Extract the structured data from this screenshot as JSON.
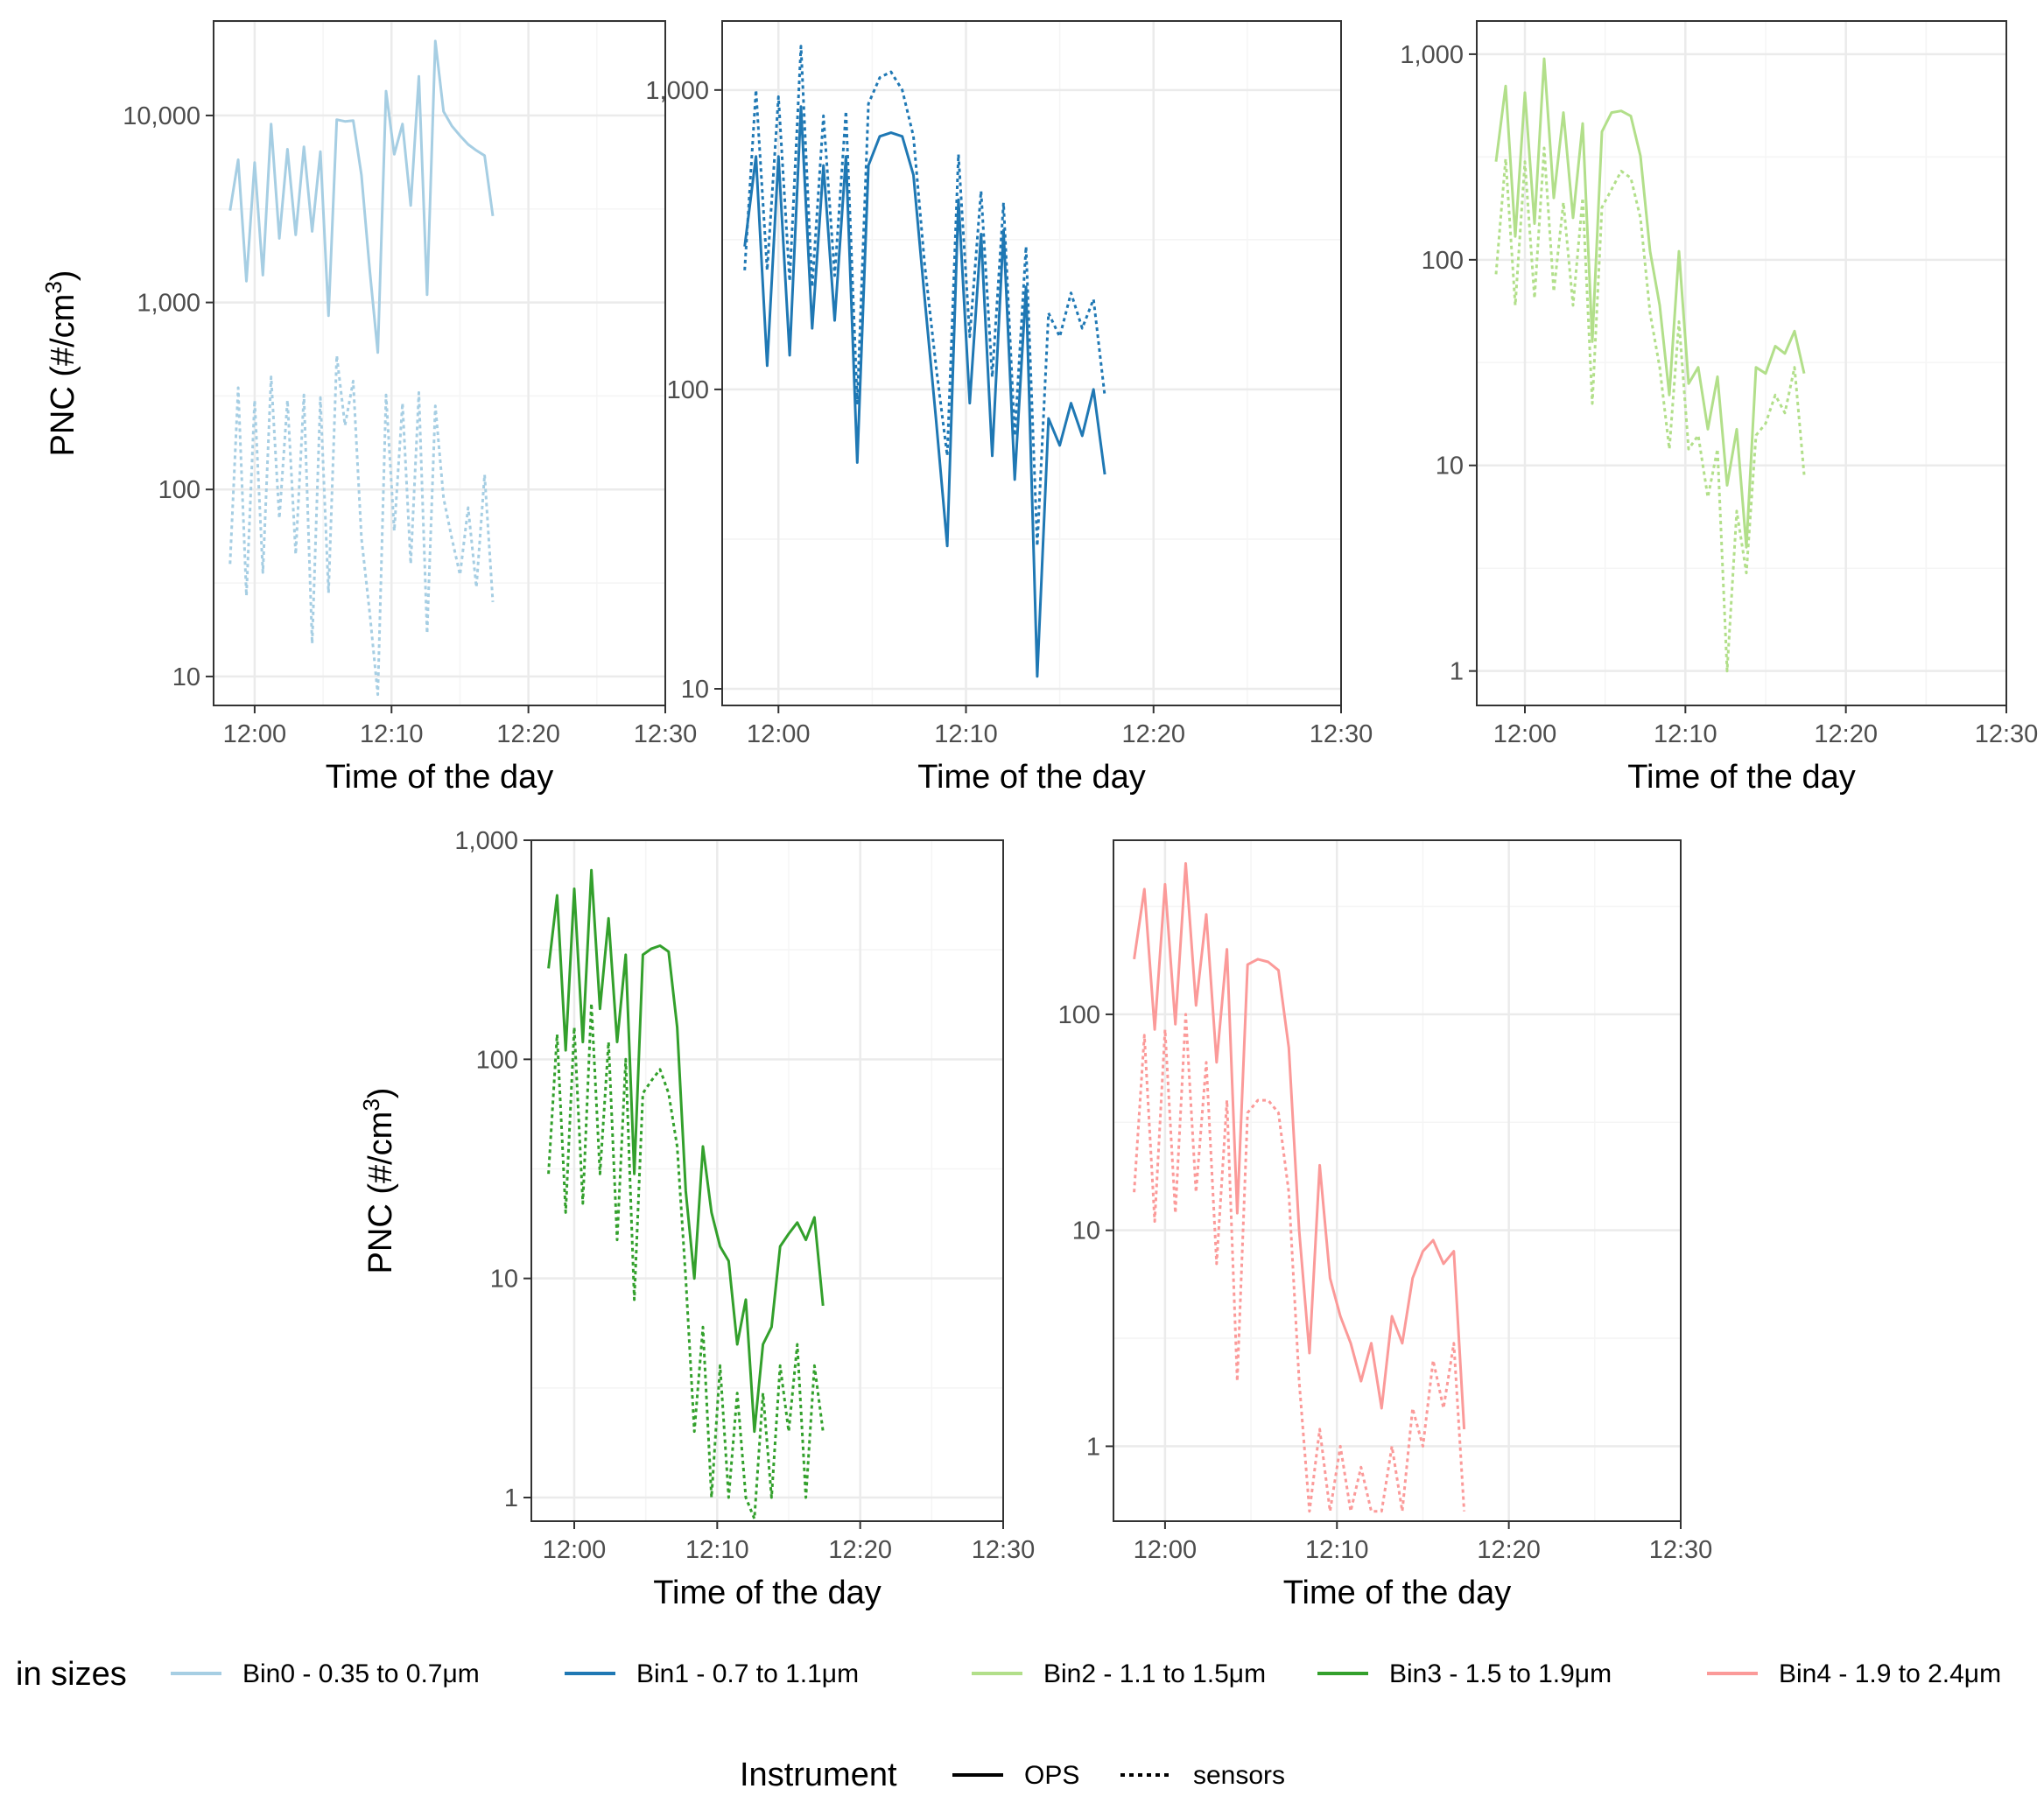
{
  "chart_data": [
    {
      "type": "line",
      "panel": "Bin0",
      "xlabel": "Time of the day",
      "ylabel": "PNC (#/cm3)",
      "yscale": "log",
      "xlim": [
        11.95,
        12.5
      ],
      "ylim": [
        7,
        32000
      ],
      "x_ticks": [
        "12:00",
        "12:10",
        "12:20",
        "12:30"
      ],
      "y_ticks": [
        "10",
        "100",
        "1,000",
        "10,000"
      ],
      "series": [
        {
          "name": "OPS",
          "bin": "Bin0 - 0.35 to 0.7μm",
          "x": [
            11.97,
            11.98,
            11.99,
            12.0,
            12.01,
            12.02,
            12.03,
            12.04,
            12.05,
            12.06,
            12.07,
            12.08,
            12.09,
            12.1,
            12.11,
            12.12,
            12.13,
            12.14,
            12.15,
            12.16,
            12.17,
            12.18,
            12.19,
            12.2,
            12.21,
            12.22,
            12.23,
            12.24,
            12.25,
            12.26,
            12.27,
            12.28,
            12.29
          ],
          "values": [
            3100,
            5800,
            1300,
            5600,
            1400,
            9000,
            2200,
            6600,
            2300,
            6800,
            2400,
            6400,
            850,
            9500,
            9300,
            9400,
            4800,
            1500,
            540,
            13500,
            6200,
            9000,
            3300,
            16200,
            1100,
            25000,
            10500,
            8800,
            7800,
            7000,
            6500,
            6100,
            2900
          ]
        },
        {
          "name": "sensors",
          "bin": "Bin0 - 0.35 to 0.7μm",
          "x": [
            11.97,
            11.98,
            11.99,
            12.0,
            12.01,
            12.02,
            12.03,
            12.04,
            12.05,
            12.06,
            12.07,
            12.08,
            12.09,
            12.1,
            12.11,
            12.12,
            12.13,
            12.14,
            12.15,
            12.16,
            12.17,
            12.18,
            12.19,
            12.2,
            12.21,
            12.22,
            12.23,
            12.24,
            12.25,
            12.26,
            12.27,
            12.28,
            12.29
          ],
          "values": [
            40,
            350,
            27,
            300,
            36,
            400,
            70,
            300,
            45,
            320,
            15,
            310,
            28,
            520,
            220,
            380,
            55,
            22,
            8,
            320,
            60,
            290,
            40,
            330,
            17,
            280,
            90,
            55,
            35,
            80,
            30,
            120,
            25
          ]
        }
      ]
    },
    {
      "type": "line",
      "panel": "Bin1",
      "xlabel": "Time of the day",
      "ylabel": "",
      "yscale": "log",
      "xlim": [
        11.95,
        12.5
      ],
      "ylim": [
        8.8,
        1700
      ],
      "x_ticks": [
        "12:00",
        "12:10",
        "12:20",
        "12:30"
      ],
      "y_ticks": [
        "10",
        "100",
        "1,000"
      ],
      "series": [
        {
          "name": "OPS",
          "bin": "Bin1 - 0.7 to 1.1μm",
          "x": [
            11.97,
            11.98,
            11.99,
            12.0,
            12.01,
            12.02,
            12.03,
            12.04,
            12.05,
            12.06,
            12.07,
            12.08,
            12.09,
            12.1,
            12.11,
            12.12,
            12.13,
            12.14,
            12.15,
            12.16,
            12.17,
            12.18,
            12.19,
            12.2,
            12.21,
            12.22,
            12.23,
            12.24,
            12.25,
            12.26,
            12.27,
            12.28,
            12.29
          ],
          "values": [
            300,
            600,
            120,
            600,
            130,
            880,
            160,
            560,
            170,
            600,
            57,
            560,
            700,
            720,
            700,
            520,
            200,
            80,
            30,
            430,
            90,
            330,
            60,
            340,
            50,
            220,
            11,
            80,
            65,
            90,
            70,
            100,
            52
          ]
        },
        {
          "name": "sensors",
          "bin": "Bin1 - 0.7 to 1.1μm",
          "x": [
            11.97,
            11.98,
            11.99,
            12.0,
            12.01,
            12.02,
            12.03,
            12.04,
            12.05,
            12.06,
            12.07,
            12.08,
            12.09,
            12.1,
            12.11,
            12.12,
            12.13,
            12.14,
            12.15,
            12.16,
            12.17,
            12.18,
            12.19,
            12.2,
            12.21,
            12.22,
            12.23,
            12.24,
            12.25,
            12.26,
            12.27,
            12.28,
            12.29
          ],
          "values": [
            250,
            1000,
            250,
            950,
            230,
            1400,
            220,
            820,
            240,
            850,
            90,
            900,
            1100,
            1150,
            1000,
            700,
            260,
            120,
            60,
            610,
            150,
            460,
            110,
            420,
            70,
            300,
            30,
            180,
            150,
            210,
            160,
            200,
            95
          ]
        }
      ]
    },
    {
      "type": "line",
      "panel": "Bin2",
      "xlabel": "Time of the day",
      "ylabel": "",
      "yscale": "log",
      "xlim": [
        11.95,
        12.5
      ],
      "ylim": [
        0.68,
        1450
      ],
      "x_ticks": [
        "12:00",
        "12:10",
        "12:20",
        "12:30"
      ],
      "y_ticks": [
        "1",
        "10",
        "100",
        "1,000"
      ],
      "series": [
        {
          "name": "OPS",
          "bin": "Bin2 - 1.1 to 1.5μm",
          "x": [
            11.97,
            11.98,
            11.99,
            12.0,
            12.01,
            12.02,
            12.03,
            12.04,
            12.05,
            12.06,
            12.07,
            12.08,
            12.09,
            12.1,
            12.11,
            12.12,
            12.13,
            12.14,
            12.15,
            12.16,
            12.17,
            12.18,
            12.19,
            12.2,
            12.21,
            12.22,
            12.23,
            12.24,
            12.25,
            12.26,
            12.27,
            12.28,
            12.29
          ],
          "values": [
            300,
            700,
            130,
            650,
            150,
            950,
            200,
            520,
            160,
            460,
            40,
            420,
            520,
            530,
            500,
            320,
            110,
            60,
            22,
            110,
            25,
            30,
            15,
            27,
            8,
            15,
            4,
            30,
            28,
            38,
            35,
            45,
            28
          ]
        },
        {
          "name": "sensors",
          "bin": "Bin2 - 1.1 to 1.5μm",
          "x": [
            11.97,
            11.98,
            11.99,
            12.0,
            12.01,
            12.02,
            12.03,
            12.04,
            12.05,
            12.06,
            12.07,
            12.08,
            12.09,
            12.1,
            12.11,
            12.12,
            12.13,
            12.14,
            12.15,
            12.16,
            12.17,
            12.18,
            12.19,
            12.2,
            12.21,
            12.22,
            12.23,
            12.24,
            12.25,
            12.26,
            12.27,
            12.28,
            12.29
          ],
          "values": [
            85,
            310,
            60,
            300,
            65,
            350,
            70,
            190,
            60,
            200,
            20,
            180,
            220,
            270,
            250,
            160,
            55,
            30,
            12,
            50,
            12,
            14,
            7,
            12,
            1,
            6,
            3,
            14,
            16,
            22,
            18,
            30,
            9
          ]
        }
      ]
    },
    {
      "type": "line",
      "panel": "Bin3",
      "xlabel": "Time of the day",
      "ylabel": "PNC (#/cm3)",
      "yscale": "log",
      "xlim": [
        11.95,
        12.5
      ],
      "ylim": [
        0.78,
        1000
      ],
      "x_ticks": [
        "12:00",
        "12:10",
        "12:20",
        "12:30"
      ],
      "y_ticks": [
        "1",
        "10",
        "100",
        "1,000"
      ],
      "series": [
        {
          "name": "OPS",
          "bin": "Bin3 - 1.5 to 1.9μm",
          "x": [
            11.97,
            11.98,
            11.99,
            12.0,
            12.01,
            12.02,
            12.03,
            12.04,
            12.05,
            12.06,
            12.07,
            12.08,
            12.09,
            12.1,
            12.11,
            12.12,
            12.13,
            12.14,
            12.15,
            12.16,
            12.17,
            12.18,
            12.19,
            12.2,
            12.21,
            12.22,
            12.23,
            12.24,
            12.25,
            12.26,
            12.27,
            12.28,
            12.29
          ],
          "values": [
            260,
            560,
            110,
            600,
            120,
            730,
            170,
            440,
            120,
            300,
            30,
            300,
            320,
            330,
            310,
            140,
            25,
            10,
            40,
            20,
            14,
            12,
            5,
            8,
            2,
            5,
            6,
            14,
            16,
            18,
            15,
            19,
            7.5
          ]
        },
        {
          "name": "sensors",
          "bin": "Bin3 - 1.5 to 1.9μm",
          "x": [
            11.97,
            11.98,
            11.99,
            12.0,
            12.01,
            12.02,
            12.03,
            12.04,
            12.05,
            12.06,
            12.07,
            12.08,
            12.09,
            12.1,
            12.11,
            12.12,
            12.13,
            12.14,
            12.15,
            12.16,
            12.17,
            12.18,
            12.19,
            12.2,
            12.21,
            12.22,
            12.23,
            12.24,
            12.25,
            12.26,
            12.27,
            12.28,
            12.29
          ],
          "values": [
            30,
            130,
            20,
            140,
            22,
            180,
            30,
            120,
            15,
            100,
            8,
            70,
            80,
            90,
            70,
            40,
            10,
            2,
            6,
            1,
            4,
            1,
            3,
            1,
            0.8,
            3,
            1,
            4,
            2,
            5,
            1,
            4,
            2
          ]
        }
      ]
    },
    {
      "type": "line",
      "panel": "Bin4",
      "xlabel": "Time of the day",
      "ylabel": "",
      "yscale": "log",
      "xlim": [
        11.95,
        12.5
      ],
      "ylim": [
        0.45,
        640
      ],
      "x_ticks": [
        "12:00",
        "12:10",
        "12:20",
        "12:30"
      ],
      "y_ticks": [
        "1",
        "10",
        "100"
      ],
      "series": [
        {
          "name": "OPS",
          "bin": "Bin4 - 1.9 to 2.4μm",
          "x": [
            11.97,
            11.98,
            11.99,
            12.0,
            12.01,
            12.02,
            12.03,
            12.04,
            12.05,
            12.06,
            12.07,
            12.08,
            12.09,
            12.1,
            12.11,
            12.12,
            12.13,
            12.14,
            12.15,
            12.16,
            12.17,
            12.18,
            12.19,
            12.2,
            12.21,
            12.22,
            12.23,
            12.24,
            12.25,
            12.26,
            12.27,
            12.28,
            12.29
          ],
          "values": [
            180,
            380,
            85,
            400,
            90,
            500,
            110,
            290,
            60,
            200,
            12,
            170,
            180,
            175,
            160,
            70,
            10,
            2.7,
            20,
            6,
            4,
            3,
            2,
            3,
            1.5,
            4,
            3,
            6,
            8,
            9,
            7,
            8,
            1.2
          ]
        },
        {
          "name": "sensors",
          "bin": "Bin4 - 1.9 to 2.4μm",
          "x": [
            11.97,
            11.98,
            11.99,
            12.0,
            12.01,
            12.02,
            12.03,
            12.04,
            12.05,
            12.06,
            12.07,
            12.08,
            12.09,
            12.1,
            12.11,
            12.12,
            12.13,
            12.14,
            12.15,
            12.16,
            12.17,
            12.18,
            12.19,
            12.2,
            12.21,
            12.22,
            12.23,
            12.24,
            12.25,
            12.26,
            12.27,
            12.28,
            12.29
          ],
          "values": [
            15,
            80,
            11,
            85,
            12,
            100,
            15,
            60,
            7,
            40,
            2,
            35,
            40,
            40,
            35,
            15,
            2,
            0.5,
            1.2,
            0.5,
            1,
            0.5,
            0.8,
            0.5,
            0.5,
            1,
            0.5,
            1.5,
            1,
            2.5,
            1.5,
            3,
            0.5
          ]
        }
      ]
    }
  ],
  "legend_bins": {
    "title": "in sizes",
    "items": [
      {
        "label": "Bin0 - 0.35 to 0.7μm",
        "color": "#a6cee3"
      },
      {
        "label": "Bin1 - 0.7 to 1.1μm",
        "color": "#1f78b4"
      },
      {
        "label": "Bin2 - 1.1 to 1.5μm",
        "color": "#b2df8a"
      },
      {
        "label": "Bin3 - 1.5 to 1.9μm",
        "color": "#33a02c"
      },
      {
        "label": "Bin4 - 1.9 to 2.4μm",
        "color": "#fb9a99"
      }
    ]
  },
  "legend_instrument": {
    "title": "Instrument",
    "items": [
      {
        "label": "OPS",
        "style": "solid"
      },
      {
        "label": "sensors",
        "style": "dotted"
      }
    ]
  },
  "colors": {
    "panel_border": "#333333",
    "grid_major": "#ebebeb",
    "grid_minor": "#f5f5f5"
  }
}
